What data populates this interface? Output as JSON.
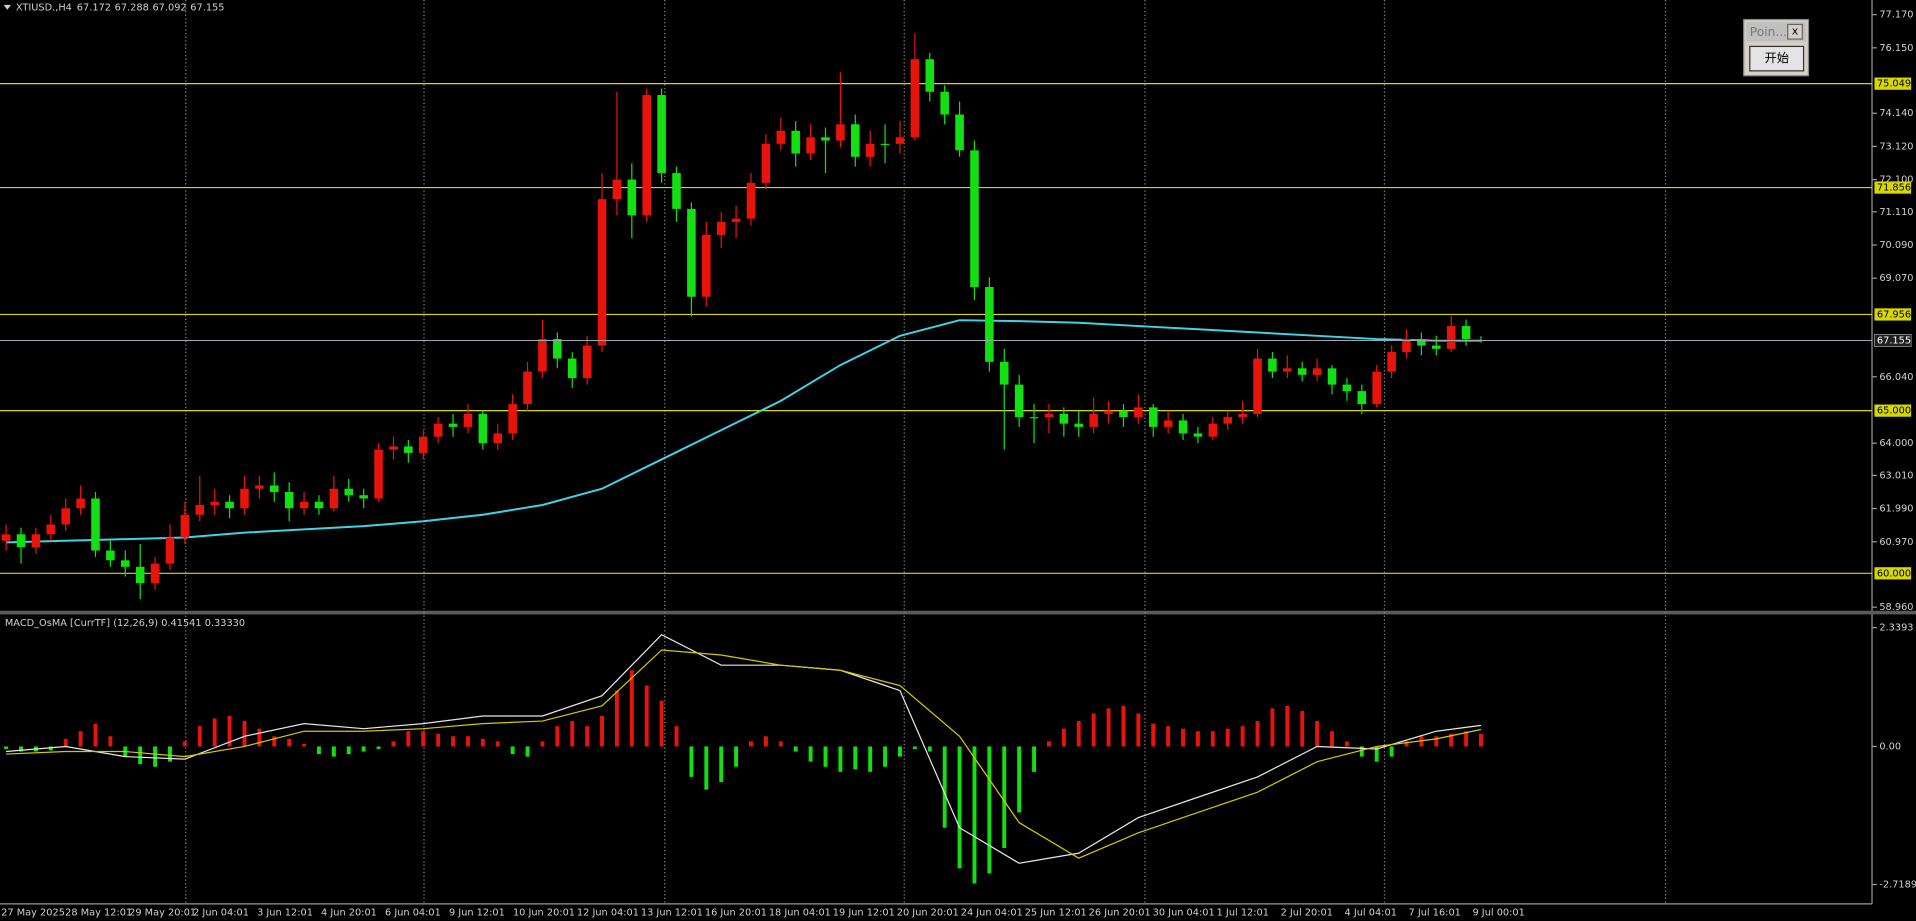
{
  "window": {
    "title": "Poin...",
    "close": "x",
    "button": "开始"
  },
  "chart_data": [
    {
      "type": "candlestick",
      "symbol": "XTIUSD.,H4",
      "colors": {
        "up": "#e8140c",
        "down": "#12e012"
      },
      "candles": [
        [
          61.0,
          61.5,
          60.7,
          61.2
        ],
        [
          61.2,
          61.4,
          60.3,
          60.8
        ],
        [
          60.8,
          61.4,
          60.6,
          61.2
        ],
        [
          61.2,
          61.8,
          61.0,
          61.5
        ],
        [
          61.5,
          62.3,
          61.3,
          62.0
        ],
        [
          62.0,
          62.7,
          61.8,
          62.3
        ],
        [
          62.3,
          62.5,
          60.5,
          60.7
        ],
        [
          60.7,
          61.0,
          60.2,
          60.4
        ],
        [
          60.4,
          60.7,
          59.9,
          60.2
        ],
        [
          60.2,
          60.9,
          59.2,
          59.7
        ],
        [
          59.7,
          60.5,
          59.5,
          60.3
        ],
        [
          60.3,
          61.5,
          60.1,
          61.1
        ],
        [
          61.1,
          62.2,
          60.9,
          61.8
        ],
        [
          61.8,
          63.0,
          61.6,
          62.1
        ],
        [
          62.1,
          62.6,
          61.8,
          62.2
        ],
        [
          62.2,
          62.4,
          61.7,
          62.0
        ],
        [
          62.0,
          63.0,
          61.8,
          62.6
        ],
        [
          62.6,
          63.0,
          62.3,
          62.7
        ],
        [
          62.7,
          63.1,
          62.2,
          62.5
        ],
        [
          62.5,
          62.8,
          61.6,
          62.0
        ],
        [
          62.0,
          62.5,
          61.8,
          62.2
        ],
        [
          62.2,
          62.4,
          61.8,
          62.0
        ],
        [
          62.0,
          63.0,
          61.9,
          62.6
        ],
        [
          62.6,
          62.9,
          62.2,
          62.4
        ],
        [
          62.4,
          62.6,
          62.0,
          62.3
        ],
        [
          62.3,
          64.0,
          62.2,
          63.8
        ],
        [
          63.8,
          64.2,
          63.5,
          63.9
        ],
        [
          63.9,
          64.1,
          63.4,
          63.7
        ],
        [
          63.7,
          64.4,
          63.5,
          64.2
        ],
        [
          64.2,
          64.8,
          64.0,
          64.6
        ],
        [
          64.6,
          64.9,
          64.2,
          64.5
        ],
        [
          64.5,
          65.2,
          64.3,
          64.9
        ],
        [
          64.9,
          65.0,
          63.8,
          64.0
        ],
        [
          64.0,
          64.6,
          63.8,
          64.3
        ],
        [
          64.3,
          65.5,
          64.1,
          65.2
        ],
        [
          65.2,
          66.5,
          65.0,
          66.2
        ],
        [
          66.2,
          67.8,
          66.0,
          67.2
        ],
        [
          67.2,
          67.4,
          66.3,
          66.6
        ],
        [
          66.6,
          66.8,
          65.7,
          66.0
        ],
        [
          66.0,
          67.3,
          65.8,
          67.0
        ],
        [
          67.0,
          72.3,
          66.8,
          71.5
        ],
        [
          71.5,
          74.8,
          71.0,
          72.1
        ],
        [
          72.1,
          72.6,
          70.3,
          71.0
        ],
        [
          71.0,
          74.9,
          70.8,
          74.7
        ],
        [
          74.7,
          74.9,
          72.0,
          72.3
        ],
        [
          72.3,
          72.5,
          70.8,
          71.2
        ],
        [
          71.2,
          71.4,
          67.9,
          68.5
        ],
        [
          68.5,
          70.8,
          68.2,
          70.4
        ],
        [
          70.4,
          71.1,
          70.0,
          70.8
        ],
        [
          70.8,
          71.3,
          70.3,
          70.9
        ],
        [
          70.9,
          72.3,
          70.7,
          72.0
        ],
        [
          72.0,
          73.5,
          71.8,
          73.2
        ],
        [
          73.2,
          74.0,
          73.0,
          73.6
        ],
        [
          73.6,
          73.9,
          72.5,
          72.9
        ],
        [
          72.9,
          73.8,
          72.7,
          73.4
        ],
        [
          73.4,
          73.7,
          72.3,
          73.3
        ],
        [
          73.3,
          75.4,
          73.1,
          73.8
        ],
        [
          73.8,
          74.1,
          72.5,
          72.8
        ],
        [
          72.8,
          73.6,
          72.5,
          73.2
        ],
        [
          73.2,
          73.8,
          72.6,
          73.2
        ],
        [
          73.2,
          73.9,
          72.9,
          73.4
        ],
        [
          73.4,
          76.6,
          73.3,
          75.8
        ],
        [
          75.8,
          76.0,
          74.5,
          74.8
        ],
        [
          74.8,
          75.0,
          73.8,
          74.1
        ],
        [
          74.1,
          74.5,
          72.8,
          73.0
        ],
        [
          73.0,
          73.3,
          68.4,
          68.8
        ],
        [
          68.8,
          69.1,
          66.2,
          66.5
        ],
        [
          66.5,
          66.9,
          63.8,
          65.8
        ],
        [
          65.8,
          66.1,
          64.5,
          64.8
        ],
        [
          64.8,
          65.2,
          64.0,
          64.8
        ],
        [
          64.8,
          65.2,
          64.3,
          64.9
        ],
        [
          64.9,
          65.1,
          64.2,
          64.6
        ],
        [
          64.6,
          65.0,
          64.2,
          64.5
        ],
        [
          64.5,
          65.4,
          64.3,
          64.9
        ],
        [
          64.9,
          65.3,
          64.6,
          65.0
        ],
        [
          65.0,
          65.2,
          64.5,
          64.8
        ],
        [
          64.8,
          65.5,
          64.6,
          65.1
        ],
        [
          65.1,
          65.2,
          64.2,
          64.5
        ],
        [
          64.5,
          65.0,
          64.3,
          64.7
        ],
        [
          64.7,
          64.9,
          64.1,
          64.3
        ],
        [
          64.3,
          64.5,
          64.0,
          64.2
        ],
        [
          64.2,
          64.8,
          64.1,
          64.6
        ],
        [
          64.6,
          65.0,
          64.4,
          64.8
        ],
        [
          64.8,
          65.3,
          64.6,
          64.9
        ],
        [
          64.9,
          66.9,
          64.8,
          66.6
        ],
        [
          66.6,
          66.8,
          66.0,
          66.2
        ],
        [
          66.2,
          66.7,
          66.0,
          66.3
        ],
        [
          66.3,
          66.5,
          65.9,
          66.1
        ],
        [
          66.1,
          66.6,
          65.9,
          66.3
        ],
        [
          66.3,
          66.4,
          65.5,
          65.8
        ],
        [
          65.8,
          66.0,
          65.3,
          65.6
        ],
        [
          65.6,
          65.8,
          64.9,
          65.2
        ],
        [
          65.2,
          66.4,
          65.1,
          66.2
        ],
        [
          66.2,
          67.0,
          66.0,
          66.8
        ],
        [
          66.8,
          67.5,
          66.6,
          67.2
        ],
        [
          67.2,
          67.4,
          66.7,
          67.0
        ],
        [
          67.0,
          67.3,
          66.7,
          66.9
        ],
        [
          66.9,
          67.9,
          66.8,
          67.6
        ],
        [
          67.6,
          67.8,
          67.0,
          67.2
        ],
        [
          67.172,
          67.288,
          67.092,
          67.155
        ]
      ],
      "ma": {
        "color": "#3fd3e6",
        "index": [
          0,
          4,
          8,
          12,
          16,
          20,
          24,
          28,
          32,
          36,
          40,
          44,
          48,
          52,
          56,
          60,
          64,
          68,
          72,
          76,
          80,
          84,
          88,
          92,
          96,
          99
        ],
        "values": [
          60.95,
          61.0,
          61.05,
          61.1,
          61.25,
          61.35,
          61.45,
          61.6,
          61.8,
          62.1,
          62.6,
          63.5,
          64.4,
          65.3,
          66.4,
          67.3,
          67.78,
          67.75,
          67.7,
          67.6,
          67.5,
          67.4,
          67.3,
          67.2,
          67.15,
          67.15
        ]
      },
      "levels": [
        75.049,
        71.856,
        67.956,
        {
          "value": 65,
          "label": "65.000"
        },
        {
          "value": 60,
          "label": "60.000"
        }
      ],
      "level_color": "#d8d800",
      "ylim": [
        58.85,
        77.62
      ],
      "yticks": [
        {
          "value": 77.17,
          "label": "77.170"
        },
        {
          "value": 76.15,
          "label": "76.150"
        },
        {
          "value": 74.14,
          "label": "74.140"
        },
        {
          "value": 73.12,
          "label": "73.120"
        },
        {
          "value": 72.1,
          "label": "72.100"
        },
        {
          "value": 71.11,
          "label": "71.110"
        },
        {
          "value": 70.09,
          "label": "70.090"
        },
        {
          "value": 69.07,
          "label": "69.070"
        },
        {
          "value": 66.04,
          "label": "66.040"
        },
        {
          "value": 64,
          "label": "64.000"
        },
        {
          "value": 63.01,
          "label": "63.010"
        },
        {
          "value": 61.99,
          "label": "61.990"
        },
        {
          "value": 60.97,
          "label": "60.970"
        },
        {
          "value": 58.96,
          "label": "58.960"
        }
      ],
      "x_labels": [
        "27 May 2025",
        "28 May 12:01",
        "29 May 20:01",
        "2 Jun 04:01",
        "3 Jun 12:01",
        "4 Jun 20:01",
        "6 Jun 04:01",
        "9 Jun 12:01",
        "10 Jun 20:01",
        "12 Jun 04:01",
        "13 Jun 12:01",
        "16 Jun 20:01",
        "18 Jun 04:01",
        "19 Jun 12:01",
        "20 Jun 20:01",
        "24 Jun 04:01",
        "25 Jun 12:01",
        "26 Jun 20:01",
        "30 Jun 04:01",
        "1 Jul 12:01",
        "2 Jul 20:01",
        "4 Jul 04:01",
        "7 Jul 16:01",
        "9 Jul 00:01"
      ],
      "grid": true
    },
    {
      "type": "macd",
      "title": "MACD_OsMA [CurrTF] (12,26,9) 0.41541 0.33330",
      "colors": {
        "up": "#e8140c",
        "down": "#12e012"
      },
      "histogram": [
        -0.05,
        -0.1,
        -0.1,
        -0.08,
        0.15,
        0.3,
        0.45,
        0.2,
        -0.2,
        -0.35,
        -0.4,
        -0.3,
        0.1,
        0.4,
        0.55,
        0.6,
        0.5,
        0.35,
        0.2,
        0.15,
        0.05,
        -0.15,
        -0.2,
        -0.15,
        -0.1,
        -0.05,
        0.1,
        0.3,
        0.3,
        0.25,
        0.2,
        0.2,
        0.15,
        0.1,
        -0.15,
        -0.2,
        0.1,
        0.4,
        0.5,
        0.4,
        0.6,
        1.1,
        1.5,
        1.2,
        0.9,
        0.4,
        -0.6,
        -0.85,
        -0.7,
        -0.4,
        0.1,
        0.2,
        0.1,
        -0.1,
        -0.3,
        -0.4,
        -0.5,
        -0.45,
        -0.5,
        -0.4,
        -0.2,
        -0.05,
        -0.1,
        -1.6,
        -2.4,
        -2.7,
        -2.5,
        -2.0,
        -1.3,
        -0.5,
        0.1,
        0.35,
        0.5,
        0.65,
        0.75,
        0.8,
        0.65,
        0.45,
        0.4,
        0.35,
        0.3,
        0.3,
        0.35,
        0.4,
        0.5,
        0.75,
        0.8,
        0.7,
        0.5,
        0.3,
        0.1,
        -0.2,
        -0.3,
        -0.2,
        0.1,
        0.2,
        0.2,
        0.25,
        0.3,
        0.25
      ],
      "series": [
        {
          "color": "#e6e6e6",
          "index": [
            0,
            4,
            8,
            12,
            16,
            20,
            24,
            28,
            32,
            36,
            40,
            44,
            48,
            52,
            56,
            60,
            64,
            68,
            72,
            76,
            80,
            84,
            88,
            92,
            96,
            99
          ],
          "values": [
            -0.1,
            0.0,
            -0.2,
            -0.25,
            0.2,
            0.45,
            0.35,
            0.45,
            0.6,
            0.6,
            1.0,
            2.2,
            1.6,
            1.6,
            1.5,
            1.1,
            -1.6,
            -2.3,
            -2.1,
            -1.4,
            -1.0,
            -0.6,
            0.0,
            -0.05,
            0.3,
            0.41541
          ]
        },
        {
          "color": "#d8c800",
          "index": [
            0,
            4,
            8,
            12,
            16,
            20,
            24,
            28,
            32,
            36,
            40,
            44,
            48,
            52,
            56,
            60,
            64,
            68,
            72,
            76,
            80,
            84,
            88,
            92,
            96,
            99
          ],
          "values": [
            -0.15,
            -0.1,
            -0.1,
            -0.2,
            0.0,
            0.3,
            0.3,
            0.35,
            0.45,
            0.5,
            0.8,
            1.9,
            1.8,
            1.6,
            1.5,
            1.2,
            0.2,
            -1.5,
            -2.2,
            -1.7,
            -1.3,
            -0.9,
            -0.3,
            0.0,
            0.15,
            0.3333
          ]
        }
      ],
      "ylim": [
        -3.1,
        2.6
      ],
      "yticks": [
        2.3393,
        {
          "value": 0,
          "label": "0.00"
        },
        -2.71899
      ]
    }
  ]
}
